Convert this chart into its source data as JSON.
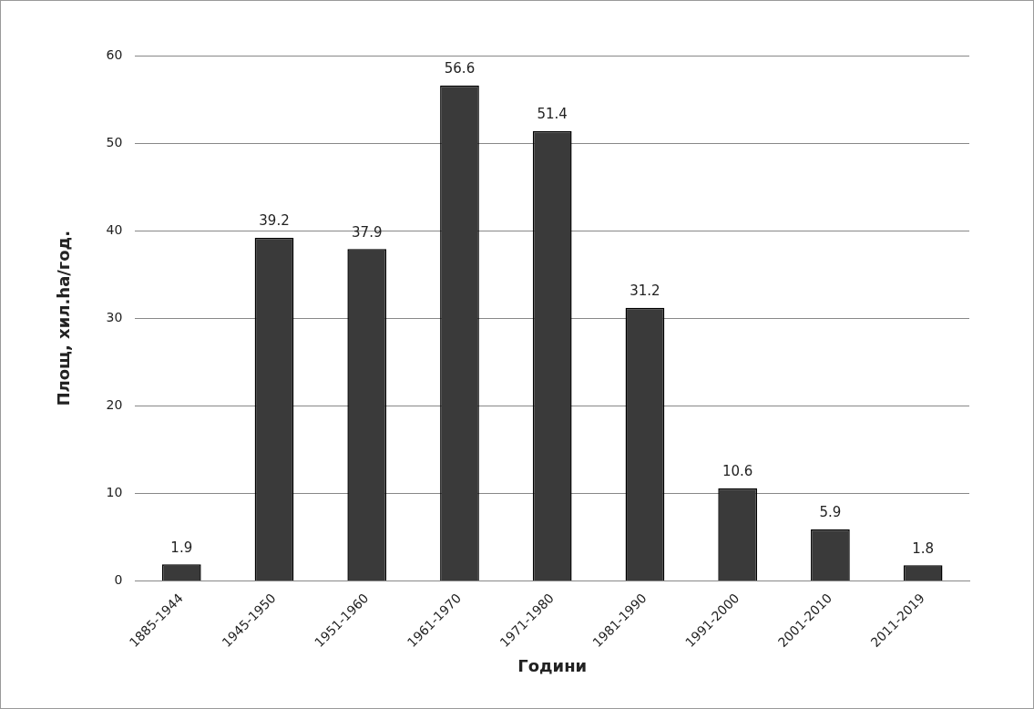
{
  "chart_data": {
    "type": "bar",
    "xlabel": "Години",
    "ylabel": "Площ, хил.ha/год.",
    "categories": [
      "1885-1944",
      "1945-1950",
      "1951-1960",
      "1961-1970",
      "1971-1980",
      "1981-1990",
      "1991-2000",
      "2001-2010",
      "2011-2019"
    ],
    "values": [
      1.9,
      39.2,
      37.9,
      56.6,
      51.4,
      31.2,
      10.6,
      5.9,
      1.8
    ],
    "color": "#3a3a3a",
    "ylim": [
      0,
      60
    ],
    "yticks": [
      0,
      10,
      20,
      30,
      40,
      50,
      60
    ],
    "grid": "y",
    "legend": false,
    "data_labels": true
  }
}
